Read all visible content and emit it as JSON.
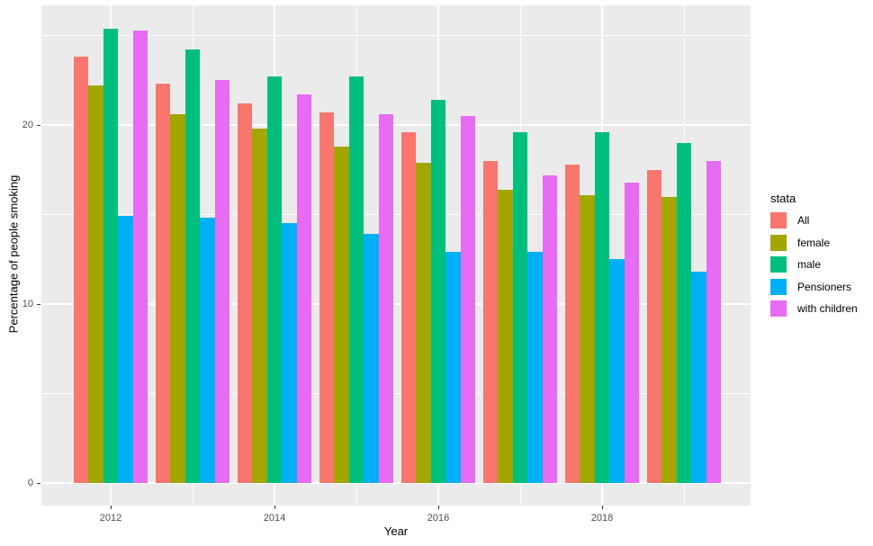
{
  "chart_data": {
    "type": "bar",
    "title": "",
    "xlabel": "Year",
    "ylabel": "Percentage of people smoking",
    "legend_title": "stata",
    "legend_position": "right",
    "x": [
      2012,
      2013,
      2014,
      2015,
      2016,
      2017,
      2018,
      2019
    ],
    "series": [
      {
        "name": "All",
        "color": "#F8766D",
        "values": [
          23.8,
          22.3,
          21.2,
          20.7,
          19.6,
          18.0,
          17.8,
          17.5
        ]
      },
      {
        "name": "female",
        "color": "#A3A500",
        "values": [
          22.2,
          20.6,
          19.8,
          18.8,
          17.9,
          16.4,
          16.1,
          16.0
        ]
      },
      {
        "name": "male",
        "color": "#00BF7D",
        "values": [
          25.4,
          24.2,
          22.7,
          22.7,
          21.4,
          19.6,
          19.6,
          19.0
        ]
      },
      {
        "name": "Pensioners",
        "color": "#00B0F6",
        "values": [
          14.9,
          14.8,
          14.5,
          13.9,
          12.9,
          12.9,
          12.5,
          11.8
        ]
      },
      {
        "name": "with children",
        "color": "#E76BF3",
        "values": [
          25.3,
          22.5,
          21.7,
          20.6,
          20.5,
          17.2,
          16.8,
          18.0
        ]
      }
    ],
    "ylim": [
      -1.3,
      26.7
    ],
    "yticks": [
      0,
      10,
      20
    ],
    "yminor": [
      5,
      15,
      25
    ],
    "xticks": [
      2012,
      2014,
      2016,
      2018
    ],
    "grid": true,
    "panel_bg": "#EBEBEB",
    "grid_color": "#FFFFFF",
    "tick_label_color": "#4D4D4D"
  }
}
